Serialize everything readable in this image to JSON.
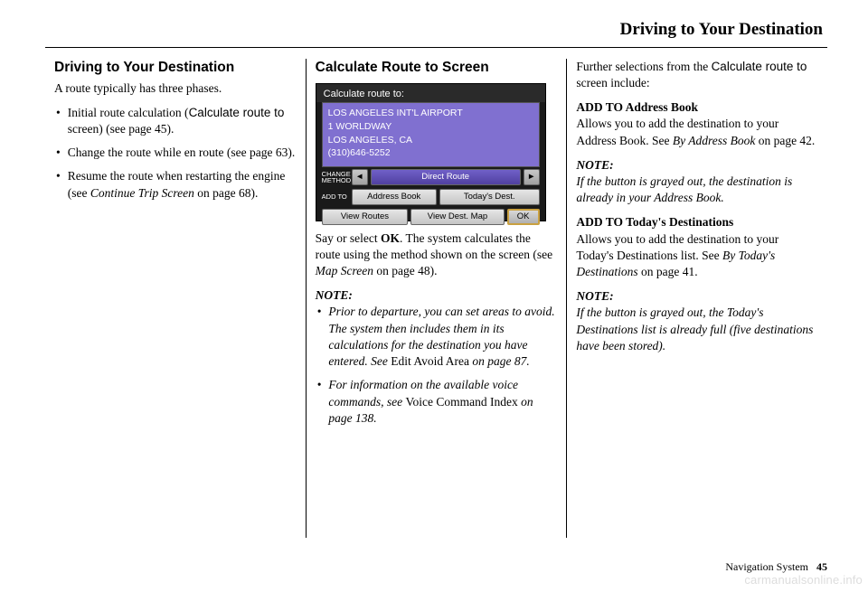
{
  "header": "Driving to Your Destination",
  "col1": {
    "title": "Driving to Your Destination",
    "intro": "A route typically has three phases.",
    "b1_pre": "Initial route calculation (",
    "b1_sans": "Calculate route to",
    "b1_post": " screen) (see page 45).",
    "b2": "Change the route while en route (see page 63).",
    "b3_pre": "Resume the route when restarting the engine (see ",
    "b3_ital": "Continue Trip Screen",
    "b3_post": " on page 68)."
  },
  "col2": {
    "title": "Calculate Route to Screen",
    "nav": {
      "title": "Calculate route to:",
      "dest": "LOS ANGELES INT'L AIRPORT\n1 WORLDWAY\nLOS ANGELES, CA\n(310)646-5252",
      "change_method": "CHANGE\nMETHOD",
      "direct": "Direct Route",
      "add_to": "ADD TO",
      "address_book": "Address Book",
      "todays": "Today's Dest.",
      "view_routes": "View Routes",
      "view_dest": "View Dest. Map",
      "ok": "OK"
    },
    "p1_pre": "Say or select ",
    "p1_bold": "OK",
    "p1_mid": ". The system calculates the route using the method shown on the screen (see ",
    "p1_ital": "Map Screen",
    "p1_post": " on page 48).",
    "note_label": "NOTE:",
    "n1_pre": "Prior to departure, you can set areas to avoid. The system then includes them in its calculations for the destination you have entered. See ",
    "n1_roman": "Edit Avoid Area",
    "n1_post": " on page 87.",
    "n2_pre": "For information on the available voice commands, see ",
    "n2_roman": "Voice Command Index",
    "n2_post": " on page 138."
  },
  "col3": {
    "intro_pre": "Further selections from the ",
    "intro_sans": "Calculate route to",
    "intro_post": " screen include:",
    "h1": "ADD TO Address Book",
    "h1_body_pre": "Allows you to add the destination to your Address Book. See ",
    "h1_body_ital": "By Address Book",
    "h1_body_post": " on page 42.",
    "note1_label": "NOTE:",
    "note1_body": "If the button is grayed out, the destination is already in your Address Book.",
    "h2": "ADD TO Today's Destinations",
    "h2_body_pre": "Allows you to add the destination to your Today's Destinations list. See ",
    "h2_body_ital": "By Today's Destinations",
    "h2_body_post": " on page 41.",
    "note2_label": "NOTE:",
    "note2_body": "If the button is grayed out, the Today's Destinations list is already full (five destinations have been stored)."
  },
  "footer": {
    "label": "Navigation System",
    "page": "45"
  },
  "watermark": "carmanualsonline.info"
}
